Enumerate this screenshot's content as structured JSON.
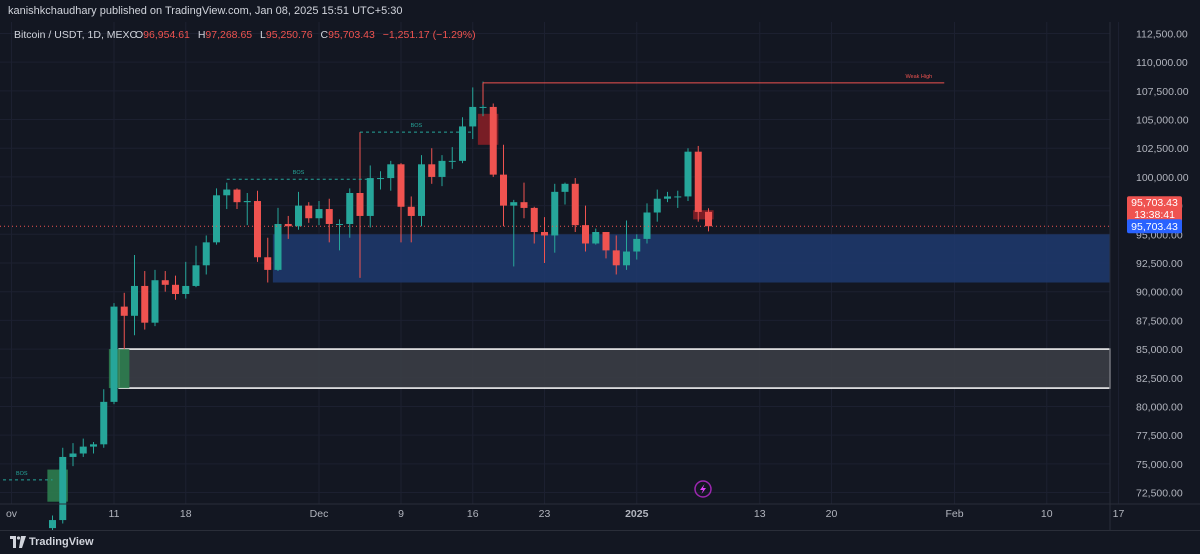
{
  "header": {
    "published_text": "kanishkchaudhary published on TradingView.com, Jan 08, 2025 15:51 UTC+5:30"
  },
  "legend": {
    "symbol": "Bitcoin / USDT, 1D, MEXC",
    "o_label": "O",
    "o_value": "96,954.61",
    "h_label": "H",
    "h_value": "97,268.65",
    "l_label": "L",
    "l_value": "95,250.76",
    "c_label": "C",
    "c_value": "95,703.43",
    "change": "−1,251.17 (−1.29%)"
  },
  "footer": {
    "brand": "TradingView"
  },
  "colors": {
    "background": "#131722",
    "up": "#26a69a",
    "down": "#ef5350",
    "fvg_blue": "#1e3a6e",
    "grey_zone": "#3b3d45",
    "price_line": "#ef5350",
    "price_tag_blue": "#2962ff"
  },
  "chart_data": {
    "type": "candlestick",
    "symbol": "Bitcoin / USDT",
    "timeframe": "1D",
    "exchange": "MEXC",
    "ylim": [
      71500,
      113500
    ],
    "y_ticks": [
      72500,
      75000,
      77500,
      80000,
      82500,
      85000,
      87500,
      90000,
      92500,
      95000,
      97500,
      100000,
      102500,
      105000,
      107500,
      110000,
      112500
    ],
    "y_tick_labels": [
      "72,500.00",
      "75,000.00",
      "77,500.00",
      "80,000.00",
      "82,500.00",
      "85,000.00",
      "87,500.00",
      "90,000.00",
      "92,500.00",
      "95,000.00",
      "97,500.00",
      "100,000.00",
      "102,500.00",
      "105,000.00",
      "107,500.00",
      "110,000.00",
      "112,500.00"
    ],
    "x_tick_labels": [
      {
        "date": "2024-11-01",
        "label": "ov"
      },
      {
        "date": "2024-11-11",
        "label": "11"
      },
      {
        "date": "2024-11-18",
        "label": "18"
      },
      {
        "date": "2024-12-01",
        "label": "Dec"
      },
      {
        "date": "2024-12-09",
        "label": "9"
      },
      {
        "date": "2024-12-16",
        "label": "16"
      },
      {
        "date": "2024-12-23",
        "label": "23"
      },
      {
        "date": "2025-01-01",
        "label": "2025"
      },
      {
        "date": "2025-01-13",
        "label": "13"
      },
      {
        "date": "2025-01-20",
        "label": "20"
      },
      {
        "date": "2025-02-01",
        "label": "Feb"
      },
      {
        "date": "2025-02-10",
        "label": "10"
      },
      {
        "date": "2025-02-17",
        "label": "17"
      }
    ],
    "candles": [
      {
        "date": "2024-11-05",
        "o": 69400,
        "h": 70500,
        "l": 68800,
        "c": 70100
      },
      {
        "date": "2024-11-06",
        "o": 70100,
        "h": 76400,
        "l": 69800,
        "c": 75600
      },
      {
        "date": "2024-11-07",
        "o": 75600,
        "h": 76800,
        "l": 74800,
        "c": 75900
      },
      {
        "date": "2024-11-08",
        "o": 75900,
        "h": 77200,
        "l": 75600,
        "c": 76500
      },
      {
        "date": "2024-11-09",
        "o": 76500,
        "h": 76900,
        "l": 75900,
        "c": 76700
      },
      {
        "date": "2024-11-10",
        "o": 76700,
        "h": 81500,
        "l": 76400,
        "c": 80400
      },
      {
        "date": "2024-11-11",
        "o": 80400,
        "h": 89000,
        "l": 80200,
        "c": 88700
      },
      {
        "date": "2024-11-12",
        "o": 88700,
        "h": 89900,
        "l": 85000,
        "c": 87900
      },
      {
        "date": "2024-11-13",
        "o": 87900,
        "h": 93200,
        "l": 86200,
        "c": 90500
      },
      {
        "date": "2024-11-14",
        "o": 90500,
        "h": 91800,
        "l": 86700,
        "c": 87300
      },
      {
        "date": "2024-11-15",
        "o": 87300,
        "h": 91900,
        "l": 87000,
        "c": 91000
      },
      {
        "date": "2024-11-16",
        "o": 91000,
        "h": 91800,
        "l": 90000,
        "c": 90600
      },
      {
        "date": "2024-11-17",
        "o": 90600,
        "h": 91400,
        "l": 89300,
        "c": 89800
      },
      {
        "date": "2024-11-18",
        "o": 89800,
        "h": 92600,
        "l": 89400,
        "c": 90500
      },
      {
        "date": "2024-11-19",
        "o": 90500,
        "h": 94000,
        "l": 90400,
        "c": 92300
      },
      {
        "date": "2024-11-20",
        "o": 92300,
        "h": 94900,
        "l": 91500,
        "c": 94300
      },
      {
        "date": "2024-11-21",
        "o": 94300,
        "h": 99000,
        "l": 94100,
        "c": 98400
      },
      {
        "date": "2024-11-22",
        "o": 98400,
        "h": 99500,
        "l": 97200,
        "c": 98900
      },
      {
        "date": "2024-11-23",
        "o": 98900,
        "h": 99000,
        "l": 97200,
        "c": 97800
      },
      {
        "date": "2024-11-24",
        "o": 97800,
        "h": 98600,
        "l": 95800,
        "c": 97900
      },
      {
        "date": "2024-11-25",
        "o": 97900,
        "h": 98800,
        "l": 92600,
        "c": 93000
      },
      {
        "date": "2024-11-26",
        "o": 93000,
        "h": 94700,
        "l": 90800,
        "c": 91900
      },
      {
        "date": "2024-11-27",
        "o": 91900,
        "h": 97300,
        "l": 91800,
        "c": 95900
      },
      {
        "date": "2024-11-28",
        "o": 95900,
        "h": 96600,
        "l": 94600,
        "c": 95700
      },
      {
        "date": "2024-11-29",
        "o": 95700,
        "h": 98700,
        "l": 95400,
        "c": 97500
      },
      {
        "date": "2024-11-30",
        "o": 97500,
        "h": 97800,
        "l": 96000,
        "c": 96400
      },
      {
        "date": "2024-12-01",
        "o": 96400,
        "h": 97900,
        "l": 95800,
        "c": 97200
      },
      {
        "date": "2024-12-02",
        "o": 97200,
        "h": 98100,
        "l": 94300,
        "c": 95900
      },
      {
        "date": "2024-12-03",
        "o": 95900,
        "h": 96300,
        "l": 93600,
        "c": 95900
      },
      {
        "date": "2024-12-04",
        "o": 95900,
        "h": 99000,
        "l": 94700,
        "c": 98600
      },
      {
        "date": "2024-12-05",
        "o": 98600,
        "h": 103900,
        "l": 91200,
        "c": 96600
      },
      {
        "date": "2024-12-06",
        "o": 96600,
        "h": 101000,
        "l": 95600,
        "c": 99900
      },
      {
        "date": "2024-12-07",
        "o": 99900,
        "h": 100500,
        "l": 98900,
        "c": 99900
      },
      {
        "date": "2024-12-08",
        "o": 99900,
        "h": 101400,
        "l": 98800,
        "c": 101100
      },
      {
        "date": "2024-12-09",
        "o": 101100,
        "h": 101200,
        "l": 94300,
        "c": 97400
      },
      {
        "date": "2024-12-10",
        "o": 97400,
        "h": 98300,
        "l": 94300,
        "c": 96600
      },
      {
        "date": "2024-12-11",
        "o": 96600,
        "h": 101900,
        "l": 95700,
        "c": 101100
      },
      {
        "date": "2024-12-12",
        "o": 101100,
        "h": 102500,
        "l": 99400,
        "c": 100000
      },
      {
        "date": "2024-12-13",
        "o": 100000,
        "h": 101900,
        "l": 99200,
        "c": 101400
      },
      {
        "date": "2024-12-14",
        "o": 101400,
        "h": 102600,
        "l": 100700,
        "c": 101400
      },
      {
        "date": "2024-12-15",
        "o": 101400,
        "h": 105200,
        "l": 101200,
        "c": 104400
      },
      {
        "date": "2024-12-16",
        "o": 104400,
        "h": 107800,
        "l": 103300,
        "c": 106100
      },
      {
        "date": "2024-12-17",
        "o": 106100,
        "h": 108300,
        "l": 105300,
        "c": 106100
      },
      {
        "date": "2024-12-18",
        "o": 106100,
        "h": 106400,
        "l": 100000,
        "c": 100200
      },
      {
        "date": "2024-12-19",
        "o": 100200,
        "h": 102800,
        "l": 95700,
        "c": 97500
      },
      {
        "date": "2024-12-20",
        "o": 97500,
        "h": 98000,
        "l": 92200,
        "c": 97800
      },
      {
        "date": "2024-12-21",
        "o": 97800,
        "h": 99500,
        "l": 96400,
        "c": 97300
      },
      {
        "date": "2024-12-22",
        "o": 97300,
        "h": 97400,
        "l": 94200,
        "c": 95200
      },
      {
        "date": "2024-12-23",
        "o": 95200,
        "h": 96500,
        "l": 92500,
        "c": 94900
      },
      {
        "date": "2024-12-24",
        "o": 94900,
        "h": 99400,
        "l": 93400,
        "c": 98700
      },
      {
        "date": "2024-12-25",
        "o": 98700,
        "h": 99500,
        "l": 97600,
        "c": 99400
      },
      {
        "date": "2024-12-26",
        "o": 99400,
        "h": 99900,
        "l": 95200,
        "c": 95800
      },
      {
        "date": "2024-12-27",
        "o": 95800,
        "h": 97500,
        "l": 93500,
        "c": 94200
      },
      {
        "date": "2024-12-28",
        "o": 94200,
        "h": 95500,
        "l": 94100,
        "c": 95200
      },
      {
        "date": "2024-12-29",
        "o": 95200,
        "h": 95200,
        "l": 92900,
        "c": 93600
      },
      {
        "date": "2024-12-30",
        "o": 93600,
        "h": 94900,
        "l": 91500,
        "c": 92300
      },
      {
        "date": "2024-12-31",
        "o": 92300,
        "h": 96200,
        "l": 91900,
        "c": 93500
      },
      {
        "date": "2025-01-01",
        "o": 93500,
        "h": 95000,
        "l": 92800,
        "c": 94600
      },
      {
        "date": "2025-01-02",
        "o": 94600,
        "h": 97700,
        "l": 94200,
        "c": 96900
      },
      {
        "date": "2025-01-03",
        "o": 96900,
        "h": 98900,
        "l": 96100,
        "c": 98100
      },
      {
        "date": "2025-01-04",
        "o": 98100,
        "h": 98700,
        "l": 97800,
        "c": 98300
      },
      {
        "date": "2025-01-05",
        "o": 98300,
        "h": 98800,
        "l": 97300,
        "c": 98300
      },
      {
        "date": "2025-01-06",
        "o": 98300,
        "h": 102500,
        "l": 97900,
        "c": 102200
      },
      {
        "date": "2025-01-07",
        "o": 102200,
        "h": 102700,
        "l": 96100,
        "c": 96950
      },
      {
        "date": "2025-01-08",
        "o": 96954.61,
        "h": 97268.65,
        "l": 95250.76,
        "c": 95703.43
      }
    ],
    "zones": [
      {
        "name": "fvg-blue-zone",
        "from_date": "2024-11-27",
        "to_date": "2025-02-17",
        "low": 90800,
        "high": 95000
      },
      {
        "name": "grey-zone",
        "from_date": "2024-11-12",
        "to_date": "2025-02-17",
        "low": 81600,
        "high": 85000
      },
      {
        "name": "green-block-top",
        "from_date": "2024-11-11",
        "to_date": "2024-11-12",
        "low": 81600,
        "high": 85000
      },
      {
        "name": "green-block-bottom",
        "from_date": "2024-11-05",
        "to_date": "2024-11-06",
        "low": 71700,
        "high": 74500
      },
      {
        "name": "red-block-top",
        "from_date": "2024-12-17",
        "to_date": "2024-12-18",
        "low": 102800,
        "high": 105500
      },
      {
        "name": "red-block-right",
        "from_date": "2025-01-07",
        "to_date": "2025-01-08",
        "low": 96300,
        "high": 97100
      }
    ],
    "annotations": [
      {
        "label": "BOS",
        "date_from": "2024-10-30",
        "date_to": "2024-11-05",
        "y": 73600
      },
      {
        "label": "BOS",
        "date_from": "2024-11-22",
        "date_to": "2024-12-06",
        "y": 99800
      },
      {
        "label": "BOS",
        "date_from": "2024-12-05",
        "date_to": "2024-12-16",
        "y": 103900
      },
      {
        "label": "Weak High",
        "date_from": "2024-12-17",
        "date_to": "2025-01-31",
        "y": 108200
      }
    ],
    "last_price": 95703.43,
    "last_price_label": "95,703.43",
    "countdown": "13:38:41",
    "current_price_label": "95,703.43"
  }
}
